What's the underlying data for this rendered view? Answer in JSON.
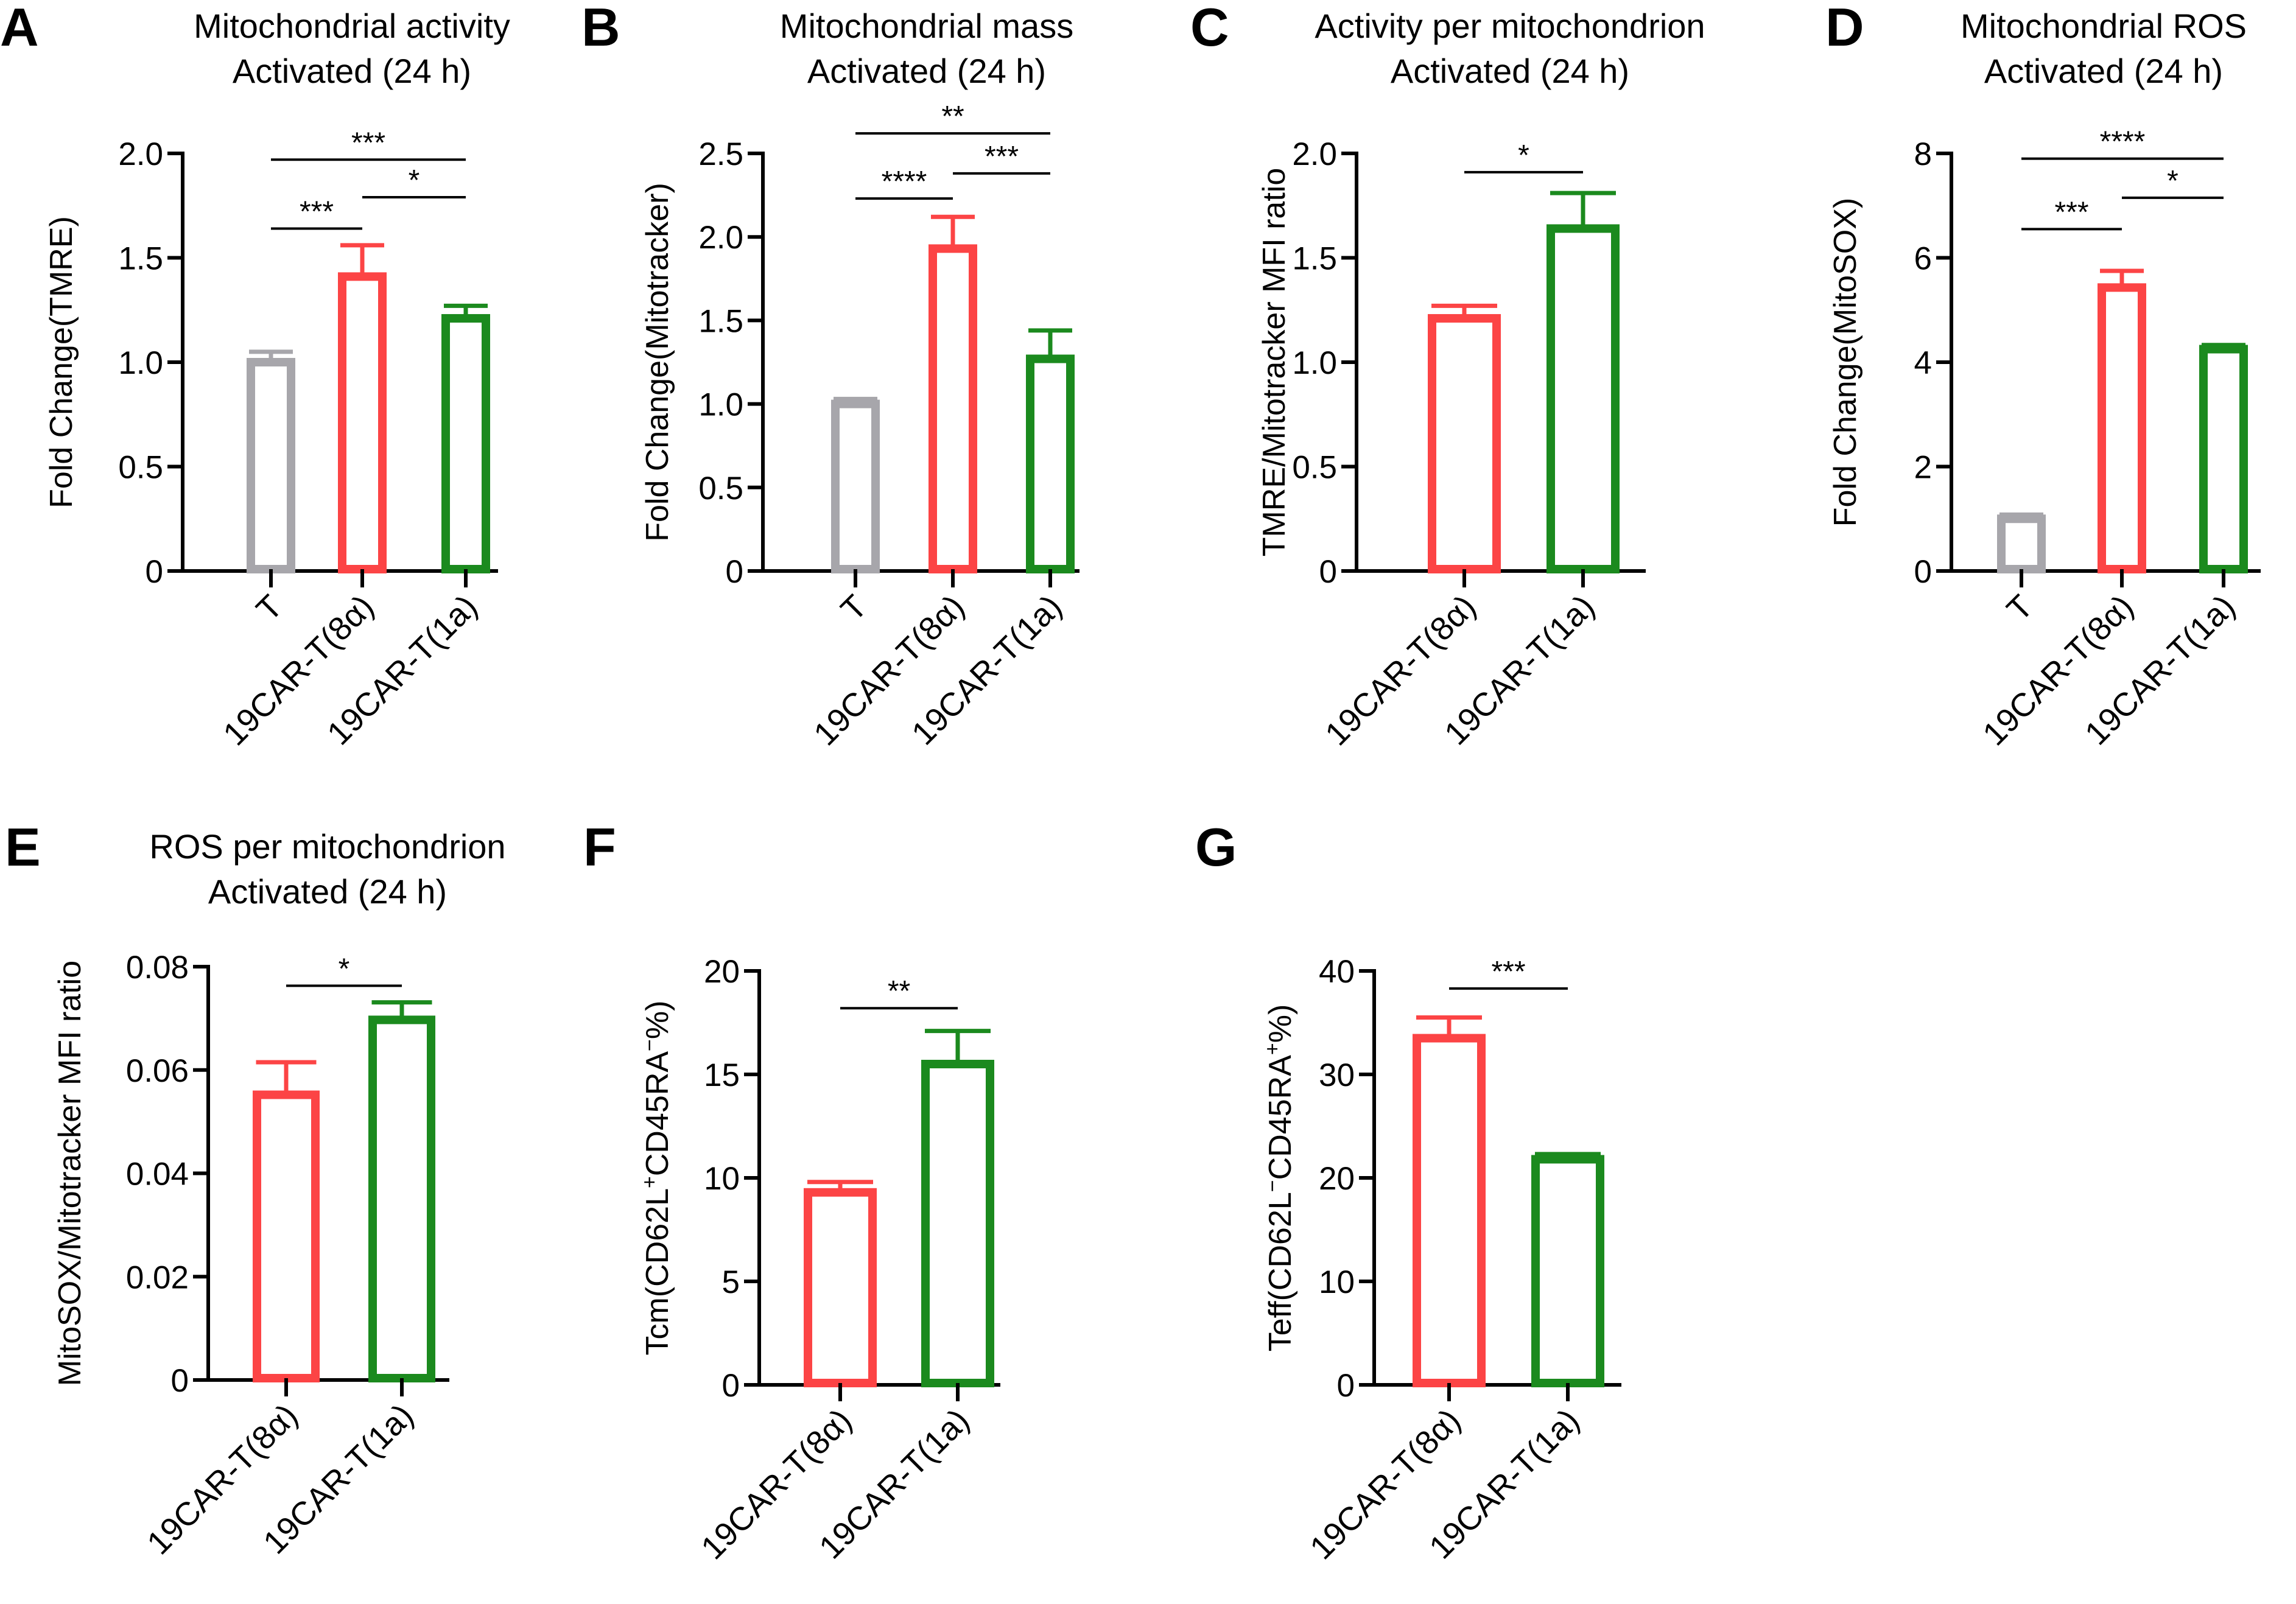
{
  "colors": {
    "T": "#a7a6ab",
    "car8a": "#fc4445",
    "car1a": "#1b8a1e"
  },
  "chart_data": [
    {
      "id": "A",
      "type": "bar",
      "panel_label": "A",
      "title_lines": [
        "Mitochondrial activity",
        "Activated (24 h)"
      ],
      "ylabel": "Fold Change(TMRE)",
      "ylim": [
        0,
        2.0
      ],
      "yticks": [
        0,
        0.5,
        1.0,
        1.5,
        2.0
      ],
      "ytick_labels": [
        "0",
        "0.5",
        "1.0",
        "1.5",
        "2.0"
      ],
      "categories": [
        "T",
        "19CAR-T(8α)",
        "19CAR-T(1a)"
      ],
      "color_keys": [
        "T",
        "car8a",
        "car1a"
      ],
      "values": [
        1.0,
        1.41,
        1.21
      ],
      "errors": [
        0.05,
        0.15,
        0.06
      ],
      "significance": [
        {
          "from": 0,
          "to": 2,
          "label": "***",
          "level": 1.97
        },
        {
          "from": 0,
          "to": 1,
          "label": "***",
          "level": 1.64
        },
        {
          "from": 1,
          "to": 2,
          "label": "*",
          "level": 1.79
        }
      ]
    },
    {
      "id": "B",
      "type": "bar",
      "panel_label": "B",
      "title_lines": [
        "Mitochondrial mass",
        "Activated (24 h)"
      ],
      "ylabel": "Fold Change(Mitotracker)",
      "ylim": [
        0,
        2.5
      ],
      "yticks": [
        0,
        0.5,
        1.0,
        1.5,
        2.0,
        2.5
      ],
      "ytick_labels": [
        "0",
        "0.5",
        "1.0",
        "1.5",
        "2.0",
        "2.5"
      ],
      "categories": [
        "T",
        "19CAR-T(8α)",
        "19CAR-T(1a)"
      ],
      "color_keys": [
        "T",
        "car8a",
        "car1a"
      ],
      "values": [
        1.0,
        1.93,
        1.27
      ],
      "errors": [
        0.03,
        0.19,
        0.17
      ],
      "significance": [
        {
          "from": 0,
          "to": 2,
          "label": "**",
          "level": 2.62
        },
        {
          "from": 0,
          "to": 1,
          "label": "****",
          "level": 2.23
        },
        {
          "from": 1,
          "to": 2,
          "label": "***",
          "level": 2.38
        }
      ]
    },
    {
      "id": "C",
      "type": "bar",
      "panel_label": "C",
      "title_lines": [
        "Activity per mitochondrion",
        "Activated (24 h)"
      ],
      "ylabel": "TMRE/Mitotracker MFI ratio",
      "ylim": [
        0,
        2.0
      ],
      "yticks": [
        0,
        0.5,
        1.0,
        1.5,
        2.0
      ],
      "ytick_labels": [
        "0",
        "0.5",
        "1.0",
        "1.5",
        "2.0"
      ],
      "categories": [
        "19CAR-T(8α)",
        "19CAR-T(1a)"
      ],
      "color_keys": [
        "car8a",
        "car1a"
      ],
      "values": [
        1.21,
        1.64
      ],
      "errors": [
        0.06,
        0.17
      ],
      "significance": [
        {
          "from": 0,
          "to": 1,
          "label": "*",
          "level": 1.91
        }
      ]
    },
    {
      "id": "D",
      "type": "bar",
      "panel_label": "D",
      "title_lines": [
        "Mitochondrial ROS",
        "Activated (24 h)"
      ],
      "ylabel": "Fold Change(MitoSOX)",
      "ylim": [
        0,
        8
      ],
      "yticks": [
        0,
        2,
        4,
        6,
        8
      ],
      "ytick_labels": [
        "0",
        "2",
        "4",
        "6",
        "8"
      ],
      "categories": [
        "T",
        "19CAR-T(8α)",
        "19CAR-T(1a)"
      ],
      "color_keys": [
        "T",
        "car8a",
        "car1a"
      ],
      "values": [
        1.0,
        5.43,
        4.25
      ],
      "errors": [
        0.08,
        0.32,
        0.08
      ],
      "significance": [
        {
          "from": 0,
          "to": 2,
          "label": "****",
          "level": 7.9
        },
        {
          "from": 0,
          "to": 1,
          "label": "***",
          "level": 6.55
        },
        {
          "from": 1,
          "to": 2,
          "label": "*",
          "level": 7.15
        }
      ]
    },
    {
      "id": "E",
      "type": "bar",
      "panel_label": "E",
      "title_lines": [
        "ROS per mitochondrion",
        "Activated (24 h)"
      ],
      "ylabel": "MitoSOX/Mitotracker MFI ratio",
      "ylim": [
        0,
        0.08
      ],
      "yticks": [
        0,
        0.02,
        0.04,
        0.06,
        0.08
      ],
      "ytick_labels": [
        "0",
        "0.02",
        "0.04",
        "0.06",
        "0.08"
      ],
      "categories": [
        "19CAR-T(8α)",
        "19CAR-T(1a)"
      ],
      "color_keys": [
        "car8a",
        "car1a"
      ],
      "values": [
        0.0552,
        0.0697
      ],
      "errors": [
        0.0063,
        0.0034
      ],
      "significance": [
        {
          "from": 0,
          "to": 1,
          "label": "*",
          "level": 0.0763
        }
      ]
    },
    {
      "id": "F",
      "type": "bar",
      "panel_label": "F",
      "title_lines": [],
      "ylabel_parts": [
        {
          "t": "Tcm(CD62L"
        },
        {
          "t": "+",
          "sup": true
        },
        {
          "t": "CD45RA"
        },
        {
          "t": "−",
          "sup": true
        },
        {
          "t": "%)"
        }
      ],
      "ylim": [
        0,
        20
      ],
      "yticks": [
        0,
        5,
        10,
        15,
        20
      ],
      "ytick_labels": [
        "0",
        "5",
        "10",
        "15",
        "20"
      ],
      "categories": [
        "19CAR-T(8α)",
        "19CAR-T(1a)"
      ],
      "color_keys": [
        "car8a",
        "car1a"
      ],
      "values": [
        9.3,
        15.5
      ],
      "errors": [
        0.5,
        1.6
      ],
      "significance": [
        {
          "from": 0,
          "to": 1,
          "label": "**",
          "level": 18.2
        }
      ]
    },
    {
      "id": "G",
      "type": "bar",
      "panel_label": "G",
      "title_lines": [],
      "ylabel_parts": [
        {
          "t": "Teff(CD62L"
        },
        {
          "t": "−",
          "sup": true
        },
        {
          "t": "CD45RA"
        },
        {
          "t": "+",
          "sup": true
        },
        {
          "t": "%)"
        }
      ],
      "ylim": [
        0,
        40
      ],
      "yticks": [
        0,
        10,
        20,
        30,
        40
      ],
      "ytick_labels": [
        "0",
        "10",
        "20",
        "30",
        "40"
      ],
      "categories": [
        "19CAR-T(8α)",
        "19CAR-T(1a)"
      ],
      "color_keys": [
        "car8a",
        "car1a"
      ],
      "values": [
        33.5,
        21.8
      ],
      "errors": [
        2.0,
        0.5
      ],
      "significance": [
        {
          "from": 0,
          "to": 1,
          "label": "***",
          "level": 38.3
        }
      ]
    }
  ]
}
